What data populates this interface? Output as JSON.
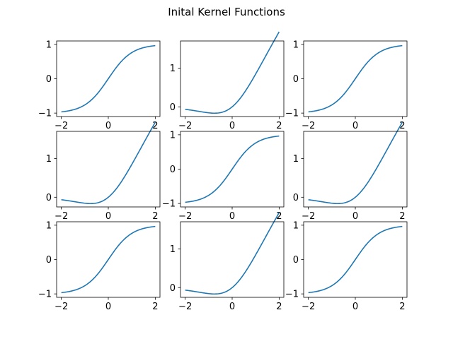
{
  "figure": {
    "title": "Inital Kernel Functions"
  },
  "style": {
    "line_color": "#1f77b4",
    "axes_color": "#000000",
    "background": "#ffffff"
  },
  "chart_data": [
    {
      "type": "line",
      "function": "tanh",
      "xlim": [
        -2.2,
        2.2
      ],
      "ylim": [
        -1.1,
        1.1
      ],
      "x_ticks": [
        -2,
        0,
        2
      ],
      "y_ticks": [
        -1,
        0,
        1
      ],
      "x_tick_labels": [
        "−2",
        "0",
        "2"
      ],
      "y_tick_labels": [
        "−1",
        "0",
        "1"
      ],
      "x": [
        -2,
        -1.5,
        -1,
        -0.5,
        0,
        0.5,
        1,
        1.5,
        2
      ],
      "y": [
        -0.96,
        -0.91,
        -0.76,
        -0.46,
        0,
        0.46,
        0.76,
        0.91,
        0.96
      ]
    },
    {
      "type": "line",
      "function": "gelu",
      "xlim": [
        -2.2,
        2.2
      ],
      "ylim": [
        -0.25,
        1.7
      ],
      "x_ticks": [
        -2,
        0,
        2
      ],
      "y_ticks": [
        0,
        1
      ],
      "x_tick_labels": [
        "−2",
        "0",
        "2"
      ],
      "y_tick_labels": [
        "0",
        "1"
      ],
      "x": [
        -2,
        -1.5,
        -1,
        -0.5,
        0,
        0.5,
        1,
        1.5,
        2
      ],
      "y": [
        -0.05,
        -0.1,
        -0.16,
        -0.15,
        0,
        0.35,
        0.84,
        1.4,
        1.95
      ]
    },
    {
      "type": "line",
      "function": "tanh",
      "xlim": [
        -2.2,
        2.2
      ],
      "ylim": [
        -1.1,
        1.1
      ],
      "x_ticks": [
        -2,
        0,
        2
      ],
      "y_ticks": [
        -1,
        0,
        1
      ],
      "x_tick_labels": [
        "−2",
        "0",
        "2"
      ],
      "y_tick_labels": [
        "−1",
        "0",
        "1"
      ],
      "x": [
        -2,
        -1.5,
        -1,
        -0.5,
        0,
        0.5,
        1,
        1.5,
        2
      ],
      "y": [
        -0.96,
        -0.91,
        -0.76,
        -0.46,
        0,
        0.46,
        0.76,
        0.91,
        0.96
      ]
    },
    {
      "type": "line",
      "function": "gelu",
      "xlim": [
        -2.2,
        2.2
      ],
      "ylim": [
        -0.25,
        1.7
      ],
      "x_ticks": [
        -2,
        0,
        2
      ],
      "y_ticks": [
        0,
        1
      ],
      "x_tick_labels": [
        "−2",
        "0",
        "2"
      ],
      "y_tick_labels": [
        "0",
        "1"
      ],
      "x": [
        -2,
        -1.5,
        -1,
        -0.5,
        0,
        0.5,
        1,
        1.5,
        2
      ],
      "y": [
        -0.05,
        -0.1,
        -0.16,
        -0.15,
        0,
        0.35,
        0.84,
        1.4,
        1.95
      ]
    },
    {
      "type": "line",
      "function": "tanh",
      "xlim": [
        -2.2,
        2.2
      ],
      "ylim": [
        -1.1,
        1.1
      ],
      "x_ticks": [
        -2,
        0,
        2
      ],
      "y_ticks": [
        -1,
        0,
        1
      ],
      "x_tick_labels": [
        "−2",
        "0",
        "2"
      ],
      "y_tick_labels": [
        "−1",
        "0",
        "1"
      ],
      "x": [
        -2,
        -1.5,
        -1,
        -0.5,
        0,
        0.5,
        1,
        1.5,
        2
      ],
      "y": [
        -0.96,
        -0.91,
        -0.76,
        -0.46,
        0,
        0.46,
        0.76,
        0.91,
        0.96
      ]
    },
    {
      "type": "line",
      "function": "gelu",
      "xlim": [
        -2.2,
        2.2
      ],
      "ylim": [
        -0.25,
        1.7
      ],
      "x_ticks": [
        -2,
        0,
        2
      ],
      "y_ticks": [
        0,
        1
      ],
      "x_tick_labels": [
        "−2",
        "0",
        "2"
      ],
      "y_tick_labels": [
        "0",
        "1"
      ],
      "x": [
        -2,
        -1.5,
        -1,
        -0.5,
        0,
        0.5,
        1,
        1.5,
        2
      ],
      "y": [
        -0.05,
        -0.1,
        -0.16,
        -0.15,
        0,
        0.35,
        0.84,
        1.4,
        1.95
      ]
    },
    {
      "type": "line",
      "function": "tanh",
      "xlim": [
        -2.2,
        2.2
      ],
      "ylim": [
        -1.1,
        1.1
      ],
      "x_ticks": [
        -2,
        0,
        2
      ],
      "y_ticks": [
        -1,
        0,
        1
      ],
      "x_tick_labels": [
        "−2",
        "0",
        "2"
      ],
      "y_tick_labels": [
        "−1",
        "0",
        "1"
      ],
      "x": [
        -2,
        -1.5,
        -1,
        -0.5,
        0,
        0.5,
        1,
        1.5,
        2
      ],
      "y": [
        -0.96,
        -0.91,
        -0.76,
        -0.46,
        0,
        0.46,
        0.76,
        0.91,
        0.96
      ]
    },
    {
      "type": "line",
      "function": "gelu",
      "xlim": [
        -2.2,
        2.2
      ],
      "ylim": [
        -0.25,
        1.7
      ],
      "x_ticks": [
        -2,
        0,
        2
      ],
      "y_ticks": [
        0,
        1
      ],
      "x_tick_labels": [
        "−2",
        "0",
        "2"
      ],
      "y_tick_labels": [
        "0",
        "1"
      ],
      "x": [
        -2,
        -1.5,
        -1,
        -0.5,
        0,
        0.5,
        1,
        1.5,
        2
      ],
      "y": [
        -0.05,
        -0.1,
        -0.16,
        -0.15,
        0,
        0.35,
        0.84,
        1.4,
        1.95
      ]
    },
    {
      "type": "line",
      "function": "tanh",
      "xlim": [
        -2.2,
        2.2
      ],
      "ylim": [
        -1.1,
        1.1
      ],
      "x_ticks": [
        -2,
        0,
        2
      ],
      "y_ticks": [
        -1,
        0,
        1
      ],
      "x_tick_labels": [
        "−2",
        "0",
        "2"
      ],
      "y_tick_labels": [
        "−1",
        "0",
        "1"
      ],
      "x": [
        -2,
        -1.5,
        -1,
        -0.5,
        0,
        0.5,
        1,
        1.5,
        2
      ],
      "y": [
        -0.96,
        -0.91,
        -0.76,
        -0.46,
        0,
        0.46,
        0.76,
        0.91,
        0.96
      ]
    }
  ]
}
